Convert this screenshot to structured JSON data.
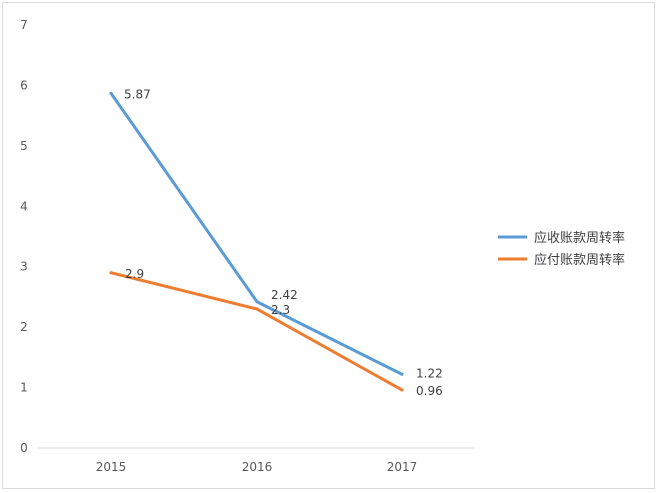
{
  "chart_data": {
    "type": "line",
    "title": "",
    "xlabel": "",
    "ylabel": "",
    "categories": [
      "2015",
      "2016",
      "2017"
    ],
    "ylim": [
      0,
      7
    ],
    "yticks": [
      "0",
      "1",
      "2",
      "3",
      "4",
      "5",
      "6",
      "7"
    ],
    "grid": false,
    "legend_position": "right",
    "series": [
      {
        "name": "应收账款周转率",
        "values": [
          5.87,
          2.42,
          1.22
        ],
        "labels": [
          "5.87",
          "2.42",
          "1.22"
        ],
        "color": "#5b9bd5"
      },
      {
        "name": "应付账款周转率",
        "values": [
          2.9,
          2.3,
          0.96
        ],
        "labels": [
          "2.9",
          "2.3",
          "0.96"
        ],
        "color": "#ed7d31"
      }
    ]
  }
}
